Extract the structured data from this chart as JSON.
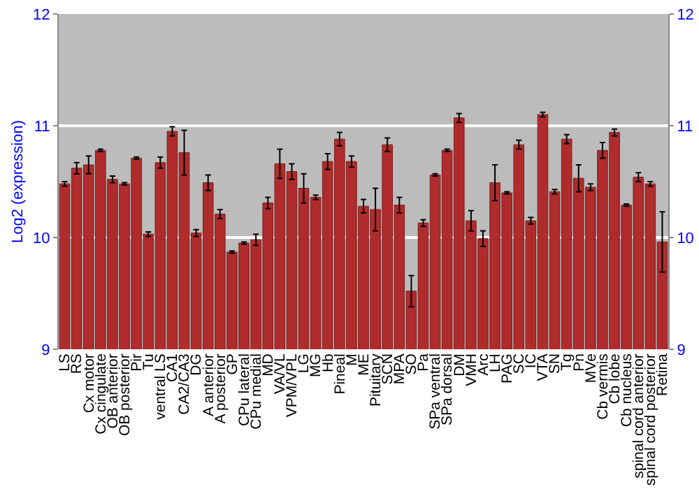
{
  "chart_data": {
    "type": "bar",
    "ylabel": "Log2 (expression)",
    "categories": [
      "LS",
      "RS",
      "Cx motor",
      "Cx cingulate",
      "OB anterior",
      "OB posterior",
      "Pir",
      "Tu",
      "ventral LS",
      "CA1",
      "CA2/CA3",
      "DG",
      "A anterior",
      "A posterior",
      "GP",
      "CPu lateral",
      "CPu medial",
      "MD",
      "VA/VL",
      "VPM/VPL",
      "LG",
      "MG",
      "Hb",
      "Pineal",
      "M",
      "ME",
      "Pituitary",
      "SCN",
      "MPA",
      "SO",
      "Pa",
      "SPa ventral",
      "SPa dorsal",
      "DM",
      "VMH",
      "Arc",
      "LH",
      "PAG",
      "SC",
      "IC",
      "VTA",
      "SN",
      "Tg",
      "Pn",
      "MVe",
      "Cb vermis",
      "Cb lobe",
      "Cb nucleus",
      "spinal cord anterior",
      "spinal cord posterior",
      "Retina"
    ],
    "values": [
      10.48,
      10.62,
      10.65,
      10.78,
      10.52,
      10.48,
      10.71,
      10.03,
      10.67,
      10.95,
      10.76,
      10.04,
      10.49,
      10.21,
      9.87,
      9.95,
      9.98,
      10.31,
      10.66,
      10.59,
      10.44,
      10.36,
      10.68,
      10.88,
      10.68,
      10.28,
      10.25,
      10.83,
      10.29,
      9.52,
      10.13,
      10.56,
      10.78,
      11.07,
      10.15,
      9.99,
      10.49,
      10.4,
      10.83,
      10.15,
      11.1,
      10.41,
      10.88,
      10.53,
      10.45,
      10.78,
      10.94,
      10.29,
      10.54,
      10.48,
      9.96
    ],
    "errors": [
      0.02,
      0.05,
      0.08,
      0.01,
      0.03,
      0.01,
      0.01,
      0.02,
      0.05,
      0.04,
      0.2,
      0.03,
      0.07,
      0.04,
      0.01,
      0.01,
      0.05,
      0.05,
      0.13,
      0.07,
      0.13,
      0.02,
      0.07,
      0.06,
      0.05,
      0.06,
      0.19,
      0.06,
      0.07,
      0.14,
      0.03,
      0.01,
      0.01,
      0.04,
      0.09,
      0.07,
      0.16,
      0.01,
      0.04,
      0.03,
      0.02,
      0.02,
      0.04,
      0.12,
      0.03,
      0.07,
      0.03,
      0.01,
      0.04,
      0.02,
      0.27
    ],
    "color": "#b02c2c",
    "ylim": [
      9,
      12
    ],
    "yticks": [
      9,
      10,
      11,
      12
    ],
    "y2lim": [
      9,
      12
    ],
    "y2ticks": [
      9,
      10,
      11,
      12
    ],
    "grid": "y"
  }
}
